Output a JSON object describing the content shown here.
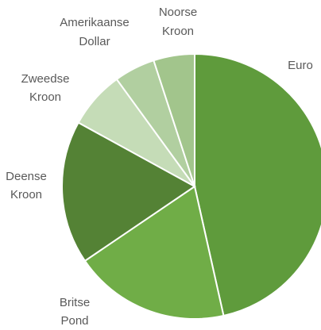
{
  "chart_data": {
    "type": "pie",
    "title": "",
    "start_angle_deg": 0,
    "direction": "clockwise",
    "slices": [
      {
        "label": [
          "Euro"
        ],
        "value": 46.5,
        "color": "#5f9b3c"
      },
      {
        "label": [
          "Britse",
          "Pond"
        ],
        "value": 19.0,
        "color": "#70ad47"
      },
      {
        "label": [
          "Deense",
          "Kroon"
        ],
        "value": 17.5,
        "color": "#548235"
      },
      {
        "label": [
          "Zweedse",
          "Kroon"
        ],
        "value": 7.0,
        "color": "#c5dcb7"
      },
      {
        "label": [
          "Amerikaanse",
          "Dollar"
        ],
        "value": 5.0,
        "color": "#b1cfa0"
      },
      {
        "label": [
          "Noorse",
          "Kroon"
        ],
        "value": 5.0,
        "color": "#a2c58c"
      }
    ]
  }
}
